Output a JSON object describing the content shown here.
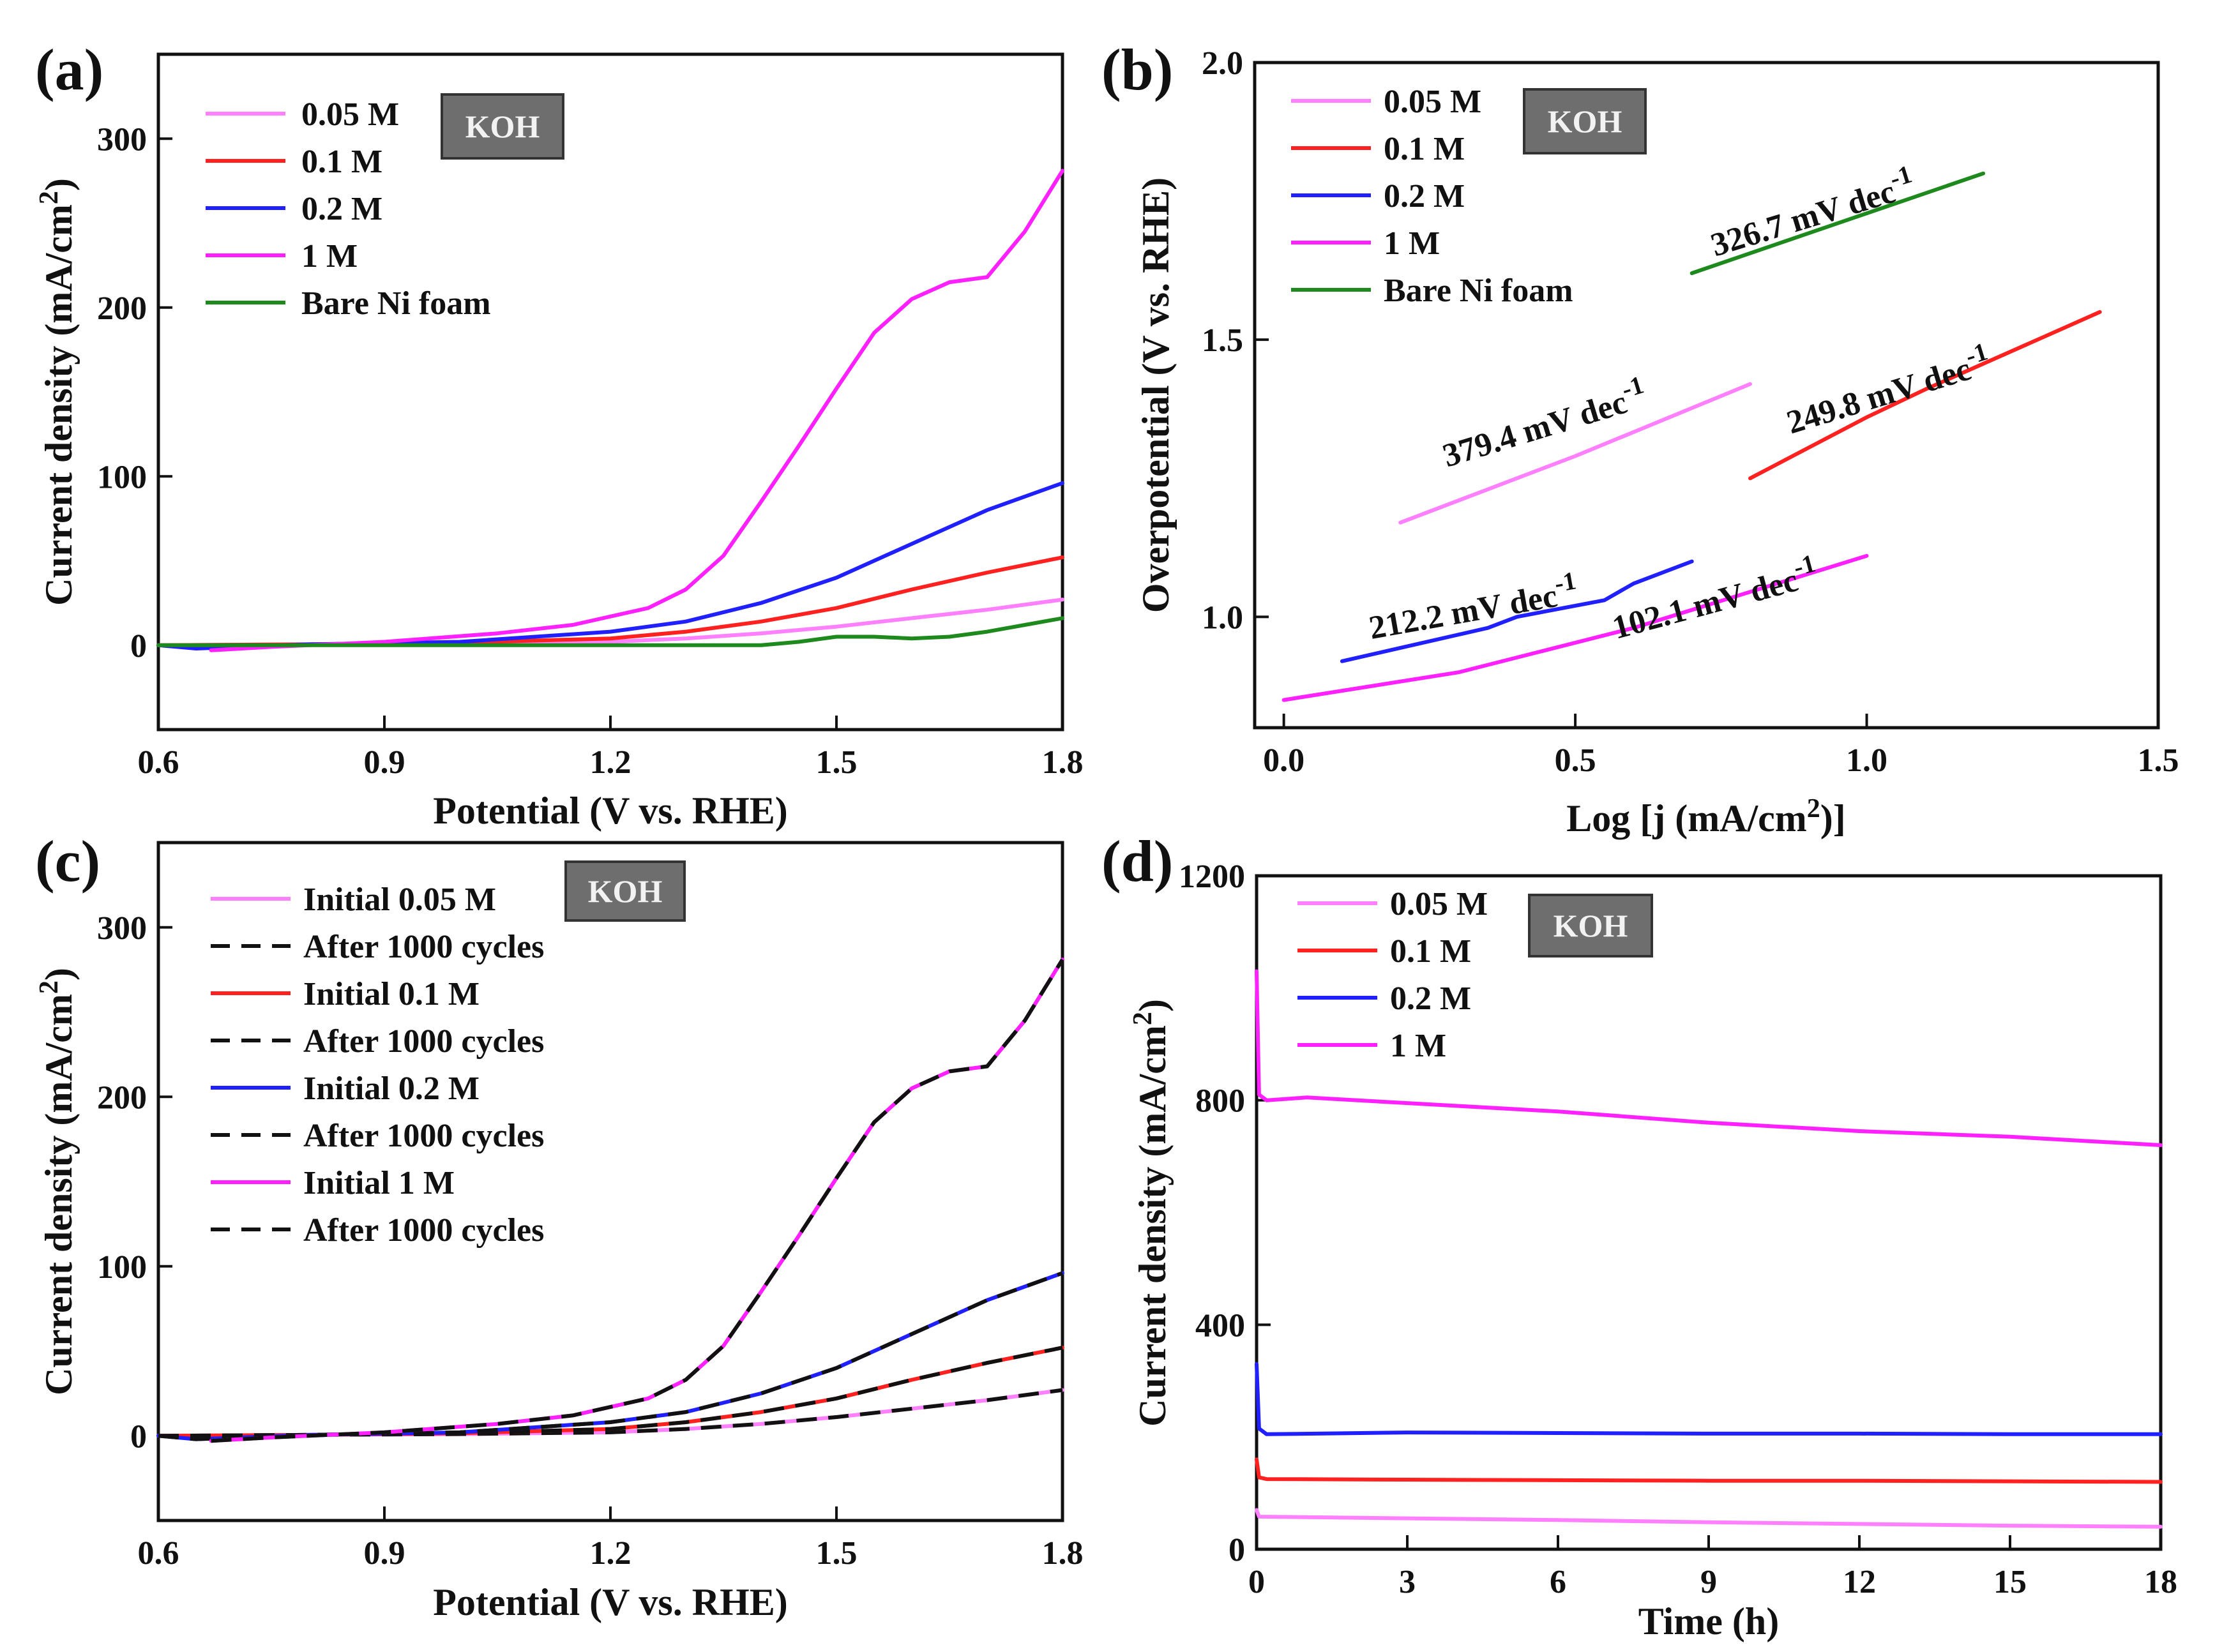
{
  "chart_data": [
    {
      "panel": "(a)",
      "type": "line",
      "xlabel": "Potential (V vs. RHE)",
      "ylabel": "Current density (mA/cm2)",
      "xlim": [
        0.6,
        1.8
      ],
      "ylim": [
        -50,
        350
      ],
      "xticks": [
        0.6,
        0.9,
        1.2,
        1.5,
        1.8
      ],
      "xtick_labels": [
        "0.6",
        "0.9",
        "1.2",
        "1.5",
        "1.8"
      ],
      "yticks": [
        0,
        100,
        200,
        300
      ],
      "ytick_labels": [
        "0",
        "100",
        "200",
        "300"
      ],
      "badge": "KOH",
      "series": [
        {
          "name": "0.05 M",
          "color": "#ff80ff",
          "x": [
            0.6,
            0.8,
            1.0,
            1.2,
            1.3,
            1.4,
            1.5,
            1.6,
            1.7,
            1.8
          ],
          "y": [
            0,
            0.5,
            1,
            2,
            4,
            7,
            11,
            16,
            21,
            27
          ]
        },
        {
          "name": "0.1 M",
          "color": "#ff2020",
          "x": [
            0.6,
            0.8,
            1.0,
            1.2,
            1.3,
            1.4,
            1.5,
            1.6,
            1.7,
            1.8
          ],
          "y": [
            0,
            0.5,
            1.5,
            4,
            8,
            14,
            22,
            33,
            43,
            52
          ]
        },
        {
          "name": "0.2 M",
          "color": "#2020ff",
          "x": [
            0.6,
            0.65,
            0.8,
            1.0,
            1.2,
            1.3,
            1.4,
            1.5,
            1.6,
            1.7,
            1.8
          ],
          "y": [
            0,
            -2,
            0.5,
            2,
            8,
            14,
            25,
            40,
            60,
            80,
            96
          ]
        },
        {
          "name": "1 M",
          "color": "#ff20ff",
          "x": [
            0.67,
            0.75,
            0.9,
            1.05,
            1.15,
            1.25,
            1.3,
            1.35,
            1.4,
            1.45,
            1.5,
            1.55,
            1.6,
            1.65,
            1.7,
            1.75,
            1.8
          ],
          "y": [
            -3,
            -1,
            2,
            7,
            12,
            22,
            33,
            53,
            85,
            118,
            152,
            185,
            205,
            215,
            218,
            245,
            281
          ]
        },
        {
          "name": "Bare Ni foam",
          "color": "#1e8a1e",
          "x": [
            0.6,
            0.9,
            1.2,
            1.4,
            1.45,
            1.5,
            1.55,
            1.6,
            1.65,
            1.7,
            1.75,
            1.8
          ],
          "y": [
            0,
            0,
            0,
            0,
            2,
            5,
            5,
            4,
            5,
            8,
            12,
            16
          ]
        }
      ]
    },
    {
      "panel": "(b)",
      "type": "line",
      "xlabel": "Log [j (mA/cm2)]",
      "ylabel": "Overpotential (V vs. RHE)",
      "xlim": [
        -0.05,
        1.5
      ],
      "ylim": [
        0.8,
        2.0
      ],
      "xticks": [
        0.0,
        0.5,
        1.0,
        1.5
      ],
      "xtick_labels": [
        "0.0",
        "0.5",
        "1.0",
        "1.5"
      ],
      "yticks": [
        1.0,
        1.5,
        2.0
      ],
      "ytick_labels": [
        "1.0",
        "1.5",
        "2.0"
      ],
      "badge": "KOH",
      "series": [
        {
          "name": "0.05 M",
          "color": "#ff80ff",
          "x": [
            0.2,
            0.5,
            0.8
          ],
          "y": [
            1.17,
            1.29,
            1.42
          ],
          "annotation": "379.4 mV dec-1"
        },
        {
          "name": "0.1 M",
          "color": "#ff2020",
          "x": [
            0.8,
            1.0,
            1.1,
            1.4
          ],
          "y": [
            1.25,
            1.36,
            1.41,
            1.55
          ],
          "annotation": "249.8 mV dec-1"
        },
        {
          "name": "0.2 M",
          "color": "#2020ff",
          "x": [
            0.1,
            0.35,
            0.4,
            0.55,
            0.6,
            0.7
          ],
          "y": [
            0.92,
            0.98,
            1.0,
            1.03,
            1.06,
            1.1
          ],
          "annotation": "212.2 mV dec-1"
        },
        {
          "name": "1 M",
          "color": "#ff20ff",
          "x": [
            0.0,
            0.3,
            0.6,
            1.0
          ],
          "y": [
            0.85,
            0.9,
            0.98,
            1.11
          ],
          "annotation": "102.1 mV dec-1"
        },
        {
          "name": "Bare Ni foam",
          "color": "#1e8a1e",
          "x": [
            0.7,
            0.95,
            1.2
          ],
          "y": [
            1.62,
            1.71,
            1.8
          ],
          "annotation": "326.7 mV dec-1"
        }
      ]
    },
    {
      "panel": "(c)",
      "type": "line",
      "xlabel": "Potential (V vs. RHE)",
      "ylabel": "Current density (mA/cm2)",
      "xlim": [
        0.6,
        1.8
      ],
      "ylim": [
        -50,
        350
      ],
      "xticks": [
        0.6,
        0.9,
        1.2,
        1.5,
        1.8
      ],
      "xtick_labels": [
        "0.6",
        "0.9",
        "1.2",
        "1.5",
        "1.8"
      ],
      "yticks": [
        0,
        100,
        200,
        300
      ],
      "ytick_labels": [
        "0",
        "100",
        "200",
        "300"
      ],
      "badge": "KOH",
      "series": [
        {
          "name": "Initial 0.05 M",
          "color": "#ff80ff",
          "x": [
            0.6,
            0.8,
            1.0,
            1.2,
            1.3,
            1.4,
            1.5,
            1.6,
            1.7,
            1.8
          ],
          "y": [
            0,
            0.5,
            1,
            2,
            4,
            7,
            11,
            16,
            21,
            27
          ]
        },
        {
          "name": "After 1000 cycles",
          "color": "#111111",
          "dashed": true,
          "x": [
            0.6,
            0.8,
            1.0,
            1.2,
            1.3,
            1.4,
            1.5,
            1.6,
            1.7,
            1.8
          ],
          "y": [
            0,
            0.5,
            1,
            2,
            4,
            7,
            11,
            16,
            21,
            27
          ]
        },
        {
          "name": "Initial 0.1 M",
          "color": "#ff2020",
          "x": [
            0.6,
            0.8,
            1.0,
            1.2,
            1.3,
            1.4,
            1.5,
            1.6,
            1.7,
            1.8
          ],
          "y": [
            0,
            0.5,
            1.5,
            4,
            8,
            14,
            22,
            33,
            43,
            52
          ]
        },
        {
          "name": "After 1000 cycles",
          "color": "#111111",
          "dashed": true,
          "x": [
            0.6,
            0.8,
            1.0,
            1.2,
            1.3,
            1.4,
            1.5,
            1.6,
            1.7,
            1.8
          ],
          "y": [
            0,
            0.5,
            1.5,
            4,
            8,
            14,
            22,
            33,
            43,
            52
          ]
        },
        {
          "name": "Initial 0.2 M",
          "color": "#2020ff",
          "x": [
            0.6,
            0.65,
            0.8,
            1.0,
            1.2,
            1.3,
            1.4,
            1.5,
            1.6,
            1.7,
            1.8
          ],
          "y": [
            0,
            -2,
            0.5,
            2,
            8,
            14,
            25,
            40,
            60,
            80,
            96
          ]
        },
        {
          "name": "After 1000 cycles",
          "color": "#111111",
          "dashed": true,
          "x": [
            0.6,
            0.65,
            0.8,
            1.0,
            1.2,
            1.3,
            1.4,
            1.5,
            1.6,
            1.7,
            1.8
          ],
          "y": [
            0,
            -2,
            0.5,
            2,
            8,
            14,
            25,
            40,
            60,
            80,
            96
          ]
        },
        {
          "name": "Initial 1 M",
          "color": "#ff20ff",
          "x": [
            0.67,
            0.75,
            0.9,
            1.05,
            1.15,
            1.25,
            1.3,
            1.35,
            1.4,
            1.45,
            1.5,
            1.55,
            1.6,
            1.65,
            1.7,
            1.75,
            1.8
          ],
          "y": [
            -3,
            -1,
            2,
            7,
            12,
            22,
            33,
            53,
            85,
            118,
            152,
            185,
            205,
            215,
            218,
            245,
            281
          ]
        },
        {
          "name": "After 1000 cycles",
          "color": "#111111",
          "dashed": true,
          "x": [
            0.67,
            0.75,
            0.9,
            1.05,
            1.15,
            1.25,
            1.3,
            1.35,
            1.4,
            1.45,
            1.5,
            1.55,
            1.6,
            1.65,
            1.7,
            1.75,
            1.8
          ],
          "y": [
            -3,
            -1,
            2,
            7,
            12,
            22,
            33,
            53,
            85,
            118,
            152,
            185,
            205,
            215,
            218,
            245,
            281
          ]
        }
      ]
    },
    {
      "panel": "(d)",
      "type": "line",
      "xlabel": "Time (h)",
      "ylabel": "Current density (mA/cm2)",
      "xlim": [
        0,
        18
      ],
      "ylim": [
        0,
        1200
      ],
      "xticks": [
        0,
        3,
        6,
        9,
        12,
        15,
        18
      ],
      "xtick_labels": [
        "0",
        "3",
        "6",
        "9",
        "12",
        "15",
        "18"
      ],
      "yticks": [
        0,
        400,
        800,
        1200
      ],
      "ytick_labels": [
        "0",
        "400",
        "800",
        "1200"
      ],
      "badge": "KOH",
      "series": [
        {
          "name": "0.05 M",
          "color": "#ff80ff",
          "x": [
            0,
            0.05,
            3,
            6,
            9,
            12,
            15,
            18
          ],
          "y": [
            70,
            58,
            55,
            52,
            48,
            45,
            42,
            40
          ]
        },
        {
          "name": "0.1 M",
          "color": "#ff2020",
          "x": [
            0,
            0.05,
            0.2,
            3,
            6,
            9,
            12,
            15,
            18
          ],
          "y": [
            160,
            128,
            125,
            124,
            123,
            122,
            122,
            121,
            120
          ]
        },
        {
          "name": "0.2 M",
          "color": "#2020ff",
          "x": [
            0,
            0.05,
            0.2,
            3,
            6,
            9,
            12,
            15,
            18
          ],
          "y": [
            330,
            215,
            205,
            208,
            207,
            206,
            206,
            205,
            205
          ]
        },
        {
          "name": "1 M",
          "color": "#ff20ff",
          "x": [
            0,
            0.05,
            0.2,
            1,
            3,
            6,
            9,
            12,
            15,
            18
          ],
          "y": [
            1030,
            810,
            800,
            805,
            795,
            780,
            760,
            745,
            735,
            720
          ]
        }
      ]
    }
  ]
}
